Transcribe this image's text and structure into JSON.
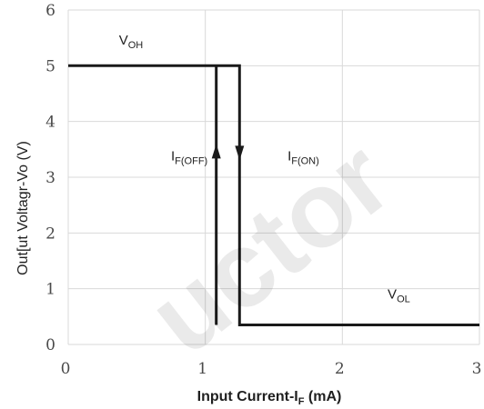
{
  "chart_data": {
    "type": "line",
    "xlabel": "Input Current-I",
    "xlabel_sub": "F",
    "xlabel_unit": " (mA)",
    "ylabel": "Out[ut Voltagr-Vo (V)",
    "xlim": [
      0,
      3
    ],
    "ylim": [
      0,
      6
    ],
    "x_ticks": [
      0,
      1,
      2,
      3
    ],
    "y_ticks": [
      0,
      1,
      2,
      3,
      4,
      5,
      6
    ],
    "grid": true,
    "line_color": "#1a1a1a",
    "grid_color": "#d9d9d9",
    "series": [
      {
        "x": [
          0,
          1.25,
          1.25,
          3
        ],
        "y": [
          5,
          5,
          0.35,
          0.35
        ]
      },
      {
        "x": [
          1.08,
          1.08
        ],
        "y": [
          5,
          0.35
        ]
      }
    ],
    "arrows": [
      {
        "x": 1.08,
        "y": 3.45,
        "direction": "up"
      },
      {
        "x": 1.25,
        "y": 3.45,
        "direction": "down"
      }
    ],
    "annotations": [
      {
        "id": "voh",
        "main": "V",
        "sub": "OH",
        "x": 0.37,
        "y": 5.38
      },
      {
        "id": "if-off",
        "main": "I",
        "sub": "F(OFF)",
        "x": 0.75,
        "y": 3.3
      },
      {
        "id": "if-on",
        "main": "I",
        "sub": "F(ON)",
        "x": 1.6,
        "y": 3.3
      },
      {
        "id": "vol",
        "main": "V",
        "sub": "OL",
        "x": 2.33,
        "y": 0.82
      }
    ]
  },
  "watermark": "uctor"
}
